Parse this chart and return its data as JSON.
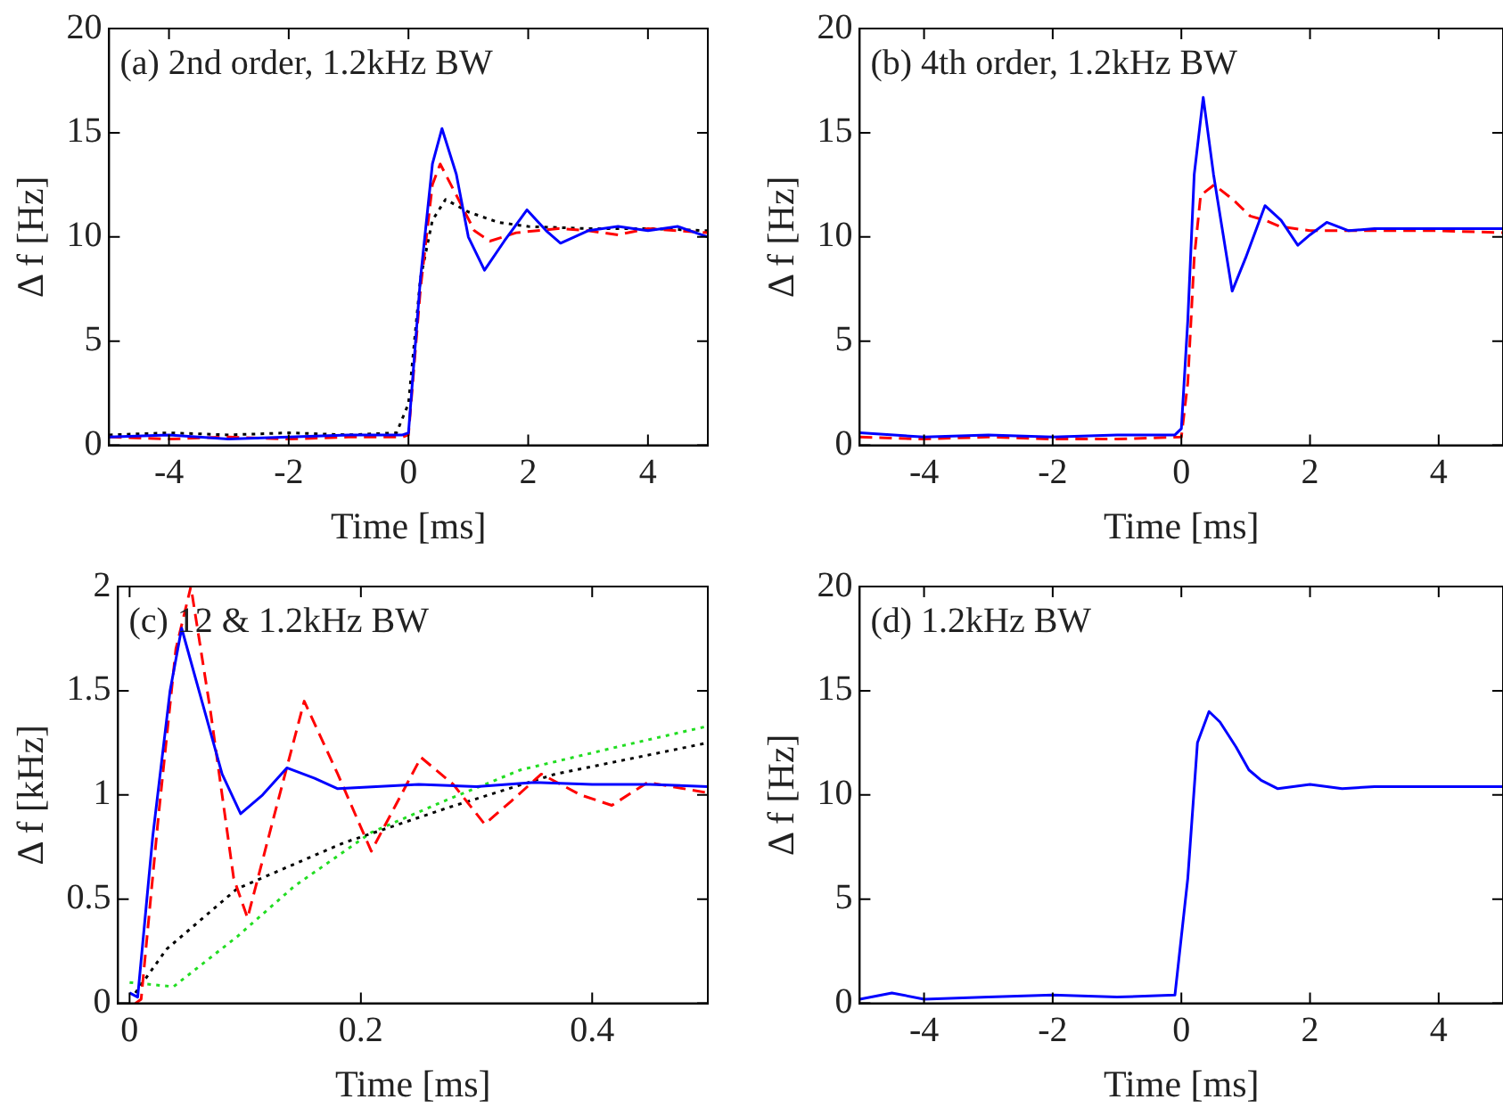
{
  "chart_data": [
    {
      "type": "line",
      "xlabel": "Time [ms]",
      "ylabel": "Δ f [Hz]",
      "annotations": [
        "(a) 2nd order, 1.2kHz BW"
      ],
      "xlim": [
        -5,
        5
      ],
      "xticks": [
        -4,
        -2,
        0,
        2,
        4
      ],
      "ylim": [
        0,
        20
      ],
      "yticks": [
        0,
        5,
        10,
        15,
        20
      ],
      "grid": false,
      "legend": false,
      "marker": "none",
      "series": [
        {
          "color": "#0000ff",
          "line_style": "solid",
          "x": [
            -5,
            -4,
            -3,
            -2,
            -1,
            -0.1,
            0,
            0.2,
            0.4,
            0.56,
            0.8,
            1.0,
            1.27,
            1.6,
            1.98,
            2.3,
            2.54,
            3,
            3.5,
            4,
            4.5,
            5
          ],
          "values": [
            0.4,
            0.5,
            0.3,
            0.4,
            0.5,
            0.5,
            0.6,
            8,
            13.5,
            15.2,
            13,
            10,
            8.4,
            9.8,
            11.3,
            10.3,
            9.7,
            10.3,
            10.5,
            10.3,
            10.5,
            10.0
          ]
        },
        {
          "color": "#ff0000",
          "line_style": "dashed",
          "x": [
            -5,
            -4,
            -3,
            -2,
            -1,
            -0.1,
            0,
            0.2,
            0.4,
            0.53,
            0.8,
            1.1,
            1.36,
            1.8,
            2.5,
            3,
            3.5,
            4,
            4.5,
            5
          ],
          "values": [
            0.4,
            0.3,
            0.4,
            0.3,
            0.4,
            0.4,
            0.5,
            7.5,
            12.5,
            13.5,
            12,
            10.3,
            9.8,
            10.2,
            10.4,
            10.3,
            10.1,
            10.4,
            10.3,
            10.2
          ]
        },
        {
          "color": "#000000",
          "line_style": "dotted",
          "x": [
            -5,
            -4,
            -3,
            -2,
            -1,
            -0.2,
            0,
            0.2,
            0.4,
            0.62,
            1,
            1.5,
            2,
            3,
            4,
            5
          ],
          "values": [
            0.5,
            0.6,
            0.5,
            0.6,
            0.5,
            0.6,
            2,
            8,
            10.8,
            11.8,
            11.2,
            10.7,
            10.5,
            10.4,
            10.4,
            10.3
          ]
        }
      ]
    },
    {
      "type": "line",
      "xlabel": "Time [ms]",
      "ylabel": "Δ f [Hz]",
      "annotations": [
        "(b) 4th order, 1.2kHz BW"
      ],
      "xlim": [
        -5,
        5
      ],
      "xticks": [
        -4,
        -2,
        0,
        2,
        4
      ],
      "ylim": [
        0,
        20
      ],
      "yticks": [
        0,
        5,
        10,
        15,
        20
      ],
      "grid": false,
      "legend": false,
      "marker": "none",
      "series": [
        {
          "color": "#0000ff",
          "line_style": "solid",
          "x": [
            -5,
            -4,
            -3,
            -2,
            -1,
            -0.1,
            0,
            0.1,
            0.2,
            0.34,
            0.5,
            0.79,
            1.0,
            1.3,
            1.55,
            1.81,
            2.0,
            2.26,
            2.6,
            3,
            4,
            5
          ],
          "values": [
            0.6,
            0.4,
            0.5,
            0.4,
            0.5,
            0.5,
            0.8,
            6,
            13,
            16.7,
            13,
            7.4,
            9,
            11.5,
            10.8,
            9.6,
            10.1,
            10.7,
            10.3,
            10.4,
            10.4,
            10.4
          ]
        },
        {
          "color": "#ff0000",
          "line_style": "dashed",
          "x": [
            -5,
            -4,
            -3,
            -2,
            -1,
            0,
            0.1,
            0.2,
            0.3,
            0.51,
            0.8,
            1.07,
            1.3,
            1.53,
            2,
            3,
            4,
            5
          ],
          "values": [
            0.4,
            0.3,
            0.4,
            0.3,
            0.3,
            0.4,
            3,
            9,
            12,
            12.5,
            11.8,
            11.0,
            10.8,
            10.5,
            10.3,
            10.3,
            10.3,
            10.2
          ]
        }
      ]
    },
    {
      "type": "line",
      "xlabel": "Time [ms]",
      "ylabel": "Δ f [kHz]",
      "annotations": [
        "(c) 12 & 1.2kHz BW"
      ],
      "xlim": [
        -0.01,
        0.5
      ],
      "xticks": [
        0,
        0.2,
        0.4
      ],
      "ylim": [
        0,
        2
      ],
      "yticks": [
        0,
        0.5,
        1,
        1.5,
        2
      ],
      "grid": false,
      "legend": false,
      "marker": "none",
      "series": [
        {
          "color": "#0000ff",
          "line_style": "solid",
          "x": [
            0,
            0.007,
            0.02,
            0.035,
            0.045,
            0.06,
            0.08,
            0.096,
            0.115,
            0.136,
            0.16,
            0.18,
            0.25,
            0.3,
            0.35,
            0.4,
            0.45,
            0.5
          ],
          "values": [
            0.05,
            0.03,
            0.8,
            1.5,
            1.8,
            1.5,
            1.1,
            0.91,
            1.0,
            1.13,
            1.08,
            1.03,
            1.05,
            1.04,
            1.06,
            1.05,
            1.05,
            1.04
          ]
        },
        {
          "color": "#ff0000",
          "line_style": "dashed",
          "x": [
            0.005,
            0.01,
            0.025,
            0.04,
            0.053,
            0.07,
            0.09,
            0.102,
            0.125,
            0.151,
            0.18,
            0.209,
            0.23,
            0.252,
            0.28,
            0.307,
            0.33,
            0.356,
            0.39,
            0.417,
            0.448,
            0.5
          ],
          "values": [
            0,
            0.02,
            0.9,
            1.7,
            2.0,
            1.4,
            0.6,
            0.41,
            0.9,
            1.45,
            1.1,
            0.73,
            0.95,
            1.18,
            1.05,
            0.86,
            0.97,
            1.1,
            1.0,
            0.95,
            1.06,
            1.01
          ]
        },
        {
          "color": "#000000",
          "line_style": "dotted",
          "x": [
            0.005,
            0.032,
            0.093,
            0.185,
            0.276,
            0.368,
            0.5
          ],
          "values": [
            0.05,
            0.26,
            0.55,
            0.77,
            0.94,
            1.1,
            1.25
          ]
        },
        {
          "color": "#22dd22",
          "line_style": "dotted",
          "x": [
            0,
            0.038,
            0.093,
            0.142,
            0.209,
            0.276,
            0.338,
            0.429,
            0.5
          ],
          "values": [
            0.1,
            0.08,
            0.32,
            0.56,
            0.82,
            0.98,
            1.12,
            1.24,
            1.33
          ]
        }
      ]
    },
    {
      "type": "line",
      "xlabel": "Time [ms]",
      "ylabel": "Δ f [Hz]",
      "annotations": [
        "(d) 1.2kHz BW"
      ],
      "xlim": [
        -5,
        5
      ],
      "xticks": [
        -4,
        -2,
        0,
        2,
        4
      ],
      "ylim": [
        0,
        20
      ],
      "yticks": [
        0,
        5,
        10,
        15,
        20
      ],
      "grid": false,
      "legend": false,
      "marker": "none",
      "series": [
        {
          "color": "#0000ff",
          "line_style": "solid",
          "x": [
            -5,
            -4.5,
            -4,
            -3,
            -2,
            -1,
            -0.1,
            0.1,
            0.25,
            0.43,
            0.6,
            0.85,
            1.05,
            1.24,
            1.5,
            2,
            2.5,
            3,
            4,
            5
          ],
          "values": [
            0.2,
            0.5,
            0.2,
            0.3,
            0.4,
            0.3,
            0.4,
            6,
            12.5,
            14,
            13.5,
            12.3,
            11.2,
            10.7,
            10.3,
            10.5,
            10.3,
            10.4,
            10.4,
            10.4
          ]
        }
      ]
    }
  ]
}
